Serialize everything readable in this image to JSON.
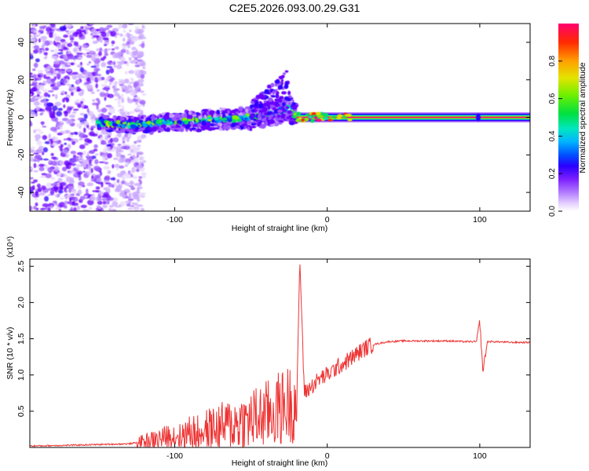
{
  "title": "C2E5.2026.093.00.29.G31",
  "colors": {
    "snr_line": "#ee3333",
    "frame": "#000000",
    "background": "#ffffff",
    "colormap": [
      "#e8d8ff",
      "#c9a6ff",
      "#9a55ff",
      "#6a00ff",
      "#2a00ff",
      "#0040ff",
      "#00a0ff",
      "#00e0c0",
      "#00e060",
      "#80f000",
      "#e0e000",
      "#ff9000",
      "#ff2000",
      "#ff0080"
    ]
  },
  "chart_data": [
    {
      "id": "spectrogram",
      "type": "heatmap",
      "xlabel": "Height of straight line (km)",
      "ylabel": "Frequency (Hz)",
      "xlim": [
        -195,
        133
      ],
      "ylim": [
        -50,
        50
      ],
      "xticks": [
        -100,
        0,
        100
      ],
      "yticks": [
        -40,
        -20,
        0,
        20,
        40
      ],
      "colorbar": {
        "label": "Normalized spectral amplitude",
        "range": [
          0,
          1
        ],
        "ticks": [
          0.0,
          0.2,
          0.4,
          0.6,
          0.8
        ]
      },
      "features": {
        "strong_carrier": {
          "x_start": -20,
          "x_end": 133,
          "frequency": 0,
          "amplitude": 1.0
        },
        "noise_scatter": {
          "x_start": -195,
          "x_end": -130,
          "frequency_range": [
            -50,
            50
          ]
        },
        "scintillating_trace": [
          {
            "x": -150,
            "f": -3
          },
          {
            "x": -130,
            "f": -4
          },
          {
            "x": -110,
            "f": -3
          },
          {
            "x": -90,
            "f": -2
          },
          {
            "x": -70,
            "f": -1
          },
          {
            "x": -50,
            "f": 0
          },
          {
            "x": -35,
            "f": 2
          },
          {
            "x": -25,
            "f": 5
          },
          {
            "x": -20,
            "f": 0
          }
        ],
        "upper_spur": [
          {
            "x": -50,
            "f": 8
          },
          {
            "x": -40,
            "f": 15
          },
          {
            "x": -30,
            "f": 22
          },
          {
            "x": -25,
            "f": 28
          }
        ]
      }
    },
    {
      "id": "snr",
      "type": "line",
      "xlabel": "Height of straight line (km)",
      "ylabel": "SNR (10 * v/v)",
      "yscale_label": "(x10⁴)",
      "xlim": [
        -195,
        133
      ],
      "ylim": [
        0,
        2.6
      ],
      "xticks": [
        -100,
        0,
        100
      ],
      "yticks": [
        0.5,
        1.0,
        1.5,
        2.0,
        2.5
      ],
      "series": [
        {
          "x": [
            -195,
            -170,
            -150,
            -130,
            -120,
            -110,
            -100,
            -90,
            -80,
            -70,
            -60,
            -50,
            -40,
            -30,
            -20,
            -18,
            -15,
            -10,
            -5,
            0,
            5,
            10,
            15,
            20,
            25,
            30,
            40,
            50,
            60,
            70,
            80,
            90,
            98,
            100,
            102,
            105,
            110,
            120,
            133
          ],
          "values": [
            0.02,
            0.03,
            0.04,
            0.05,
            0.08,
            0.12,
            0.16,
            0.2,
            0.24,
            0.28,
            0.33,
            0.38,
            0.45,
            0.55,
            0.65,
            2.6,
            0.75,
            0.85,
            0.95,
            1.0,
            1.08,
            1.15,
            1.22,
            1.3,
            1.37,
            1.42,
            1.46,
            1.47,
            1.47,
            1.47,
            1.47,
            1.46,
            1.46,
            1.75,
            1.05,
            1.46,
            1.46,
            1.45,
            1.45
          ]
        }
      ]
    }
  ]
}
